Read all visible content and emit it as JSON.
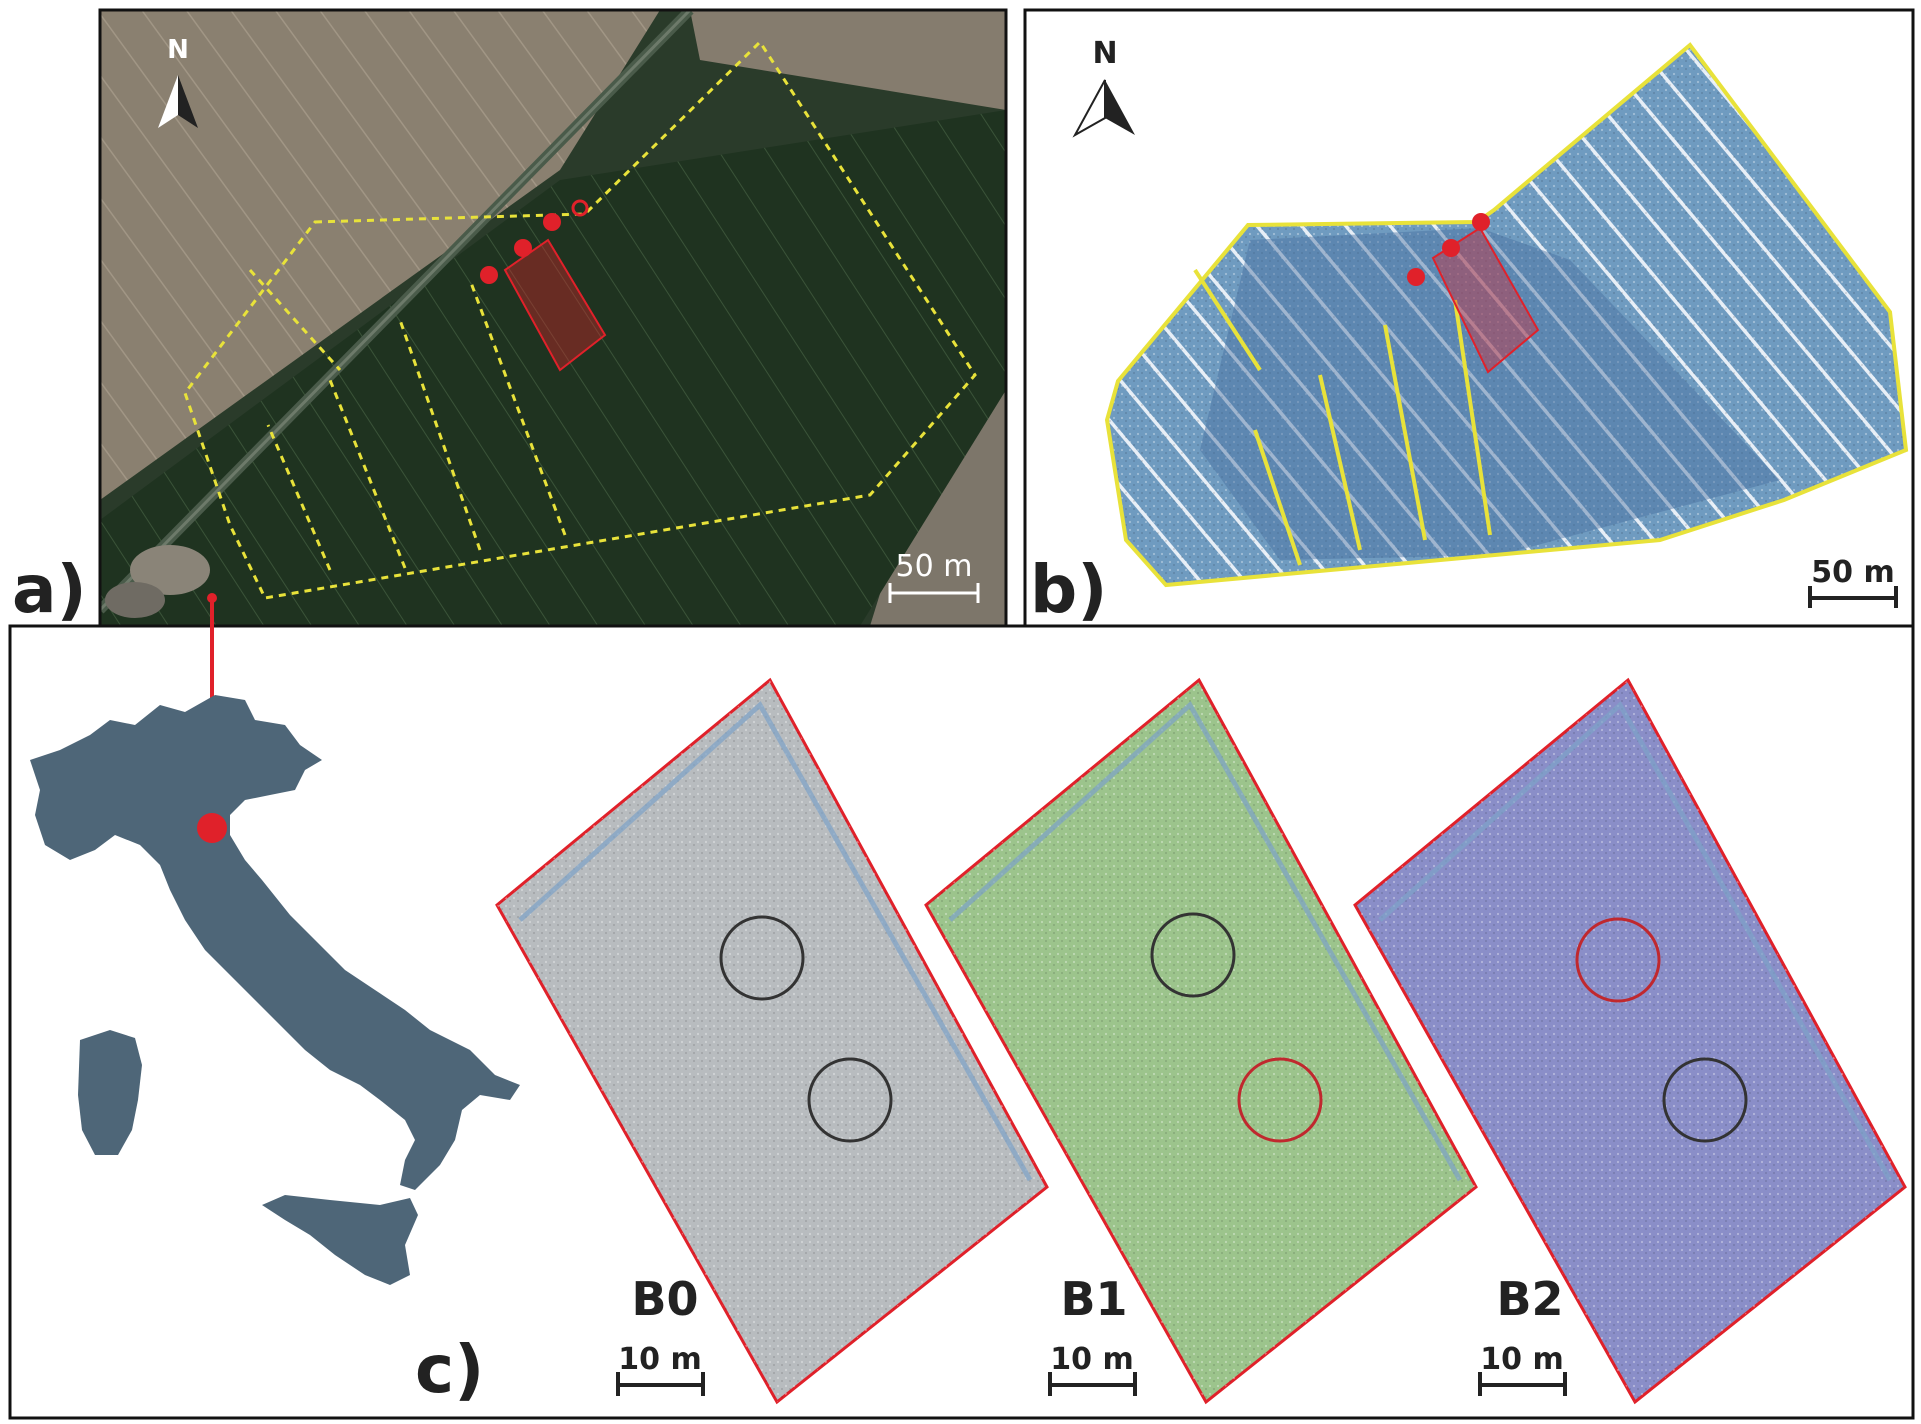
{
  "figure": {
    "panel_a": {
      "label": "a)",
      "north_label": "N",
      "scale_label": "50 m"
    },
    "panel_b": {
      "label": "b)",
      "north_label": "N",
      "scale_label": "50 m"
    },
    "panel_c": {
      "label": "c)",
      "plots": [
        {
          "name": "B0",
          "scale_label": "10 m"
        },
        {
          "name": "B1",
          "scale_label": "10 m"
        },
        {
          "name": "B2",
          "scale_label": "10 m"
        }
      ]
    },
    "colors": {
      "survey_boundary": "#e8e23a",
      "plot_marker": "#e0212a",
      "map_fill": "#4e6678",
      "b0_fill": "#b8bcbf",
      "b1_fill": "#9cc48c",
      "b2_fill": "#8a8ec8"
    }
  }
}
